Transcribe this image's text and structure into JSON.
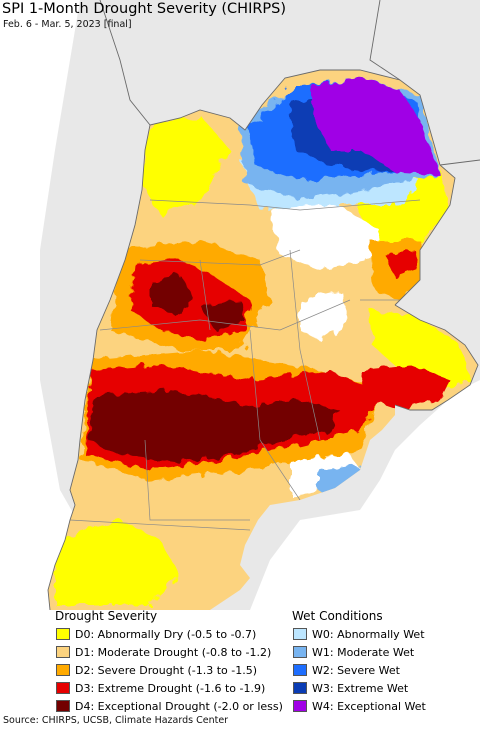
{
  "title": "SPI 1-Month Drought Severity (CHIRPS)",
  "subtitle": "Feb. 6 - Mar. 5, 2023 [final]",
  "map_colors": {
    "ocean": "#ffffff",
    "land_outside": "#e8e8e8",
    "border": "#8a8a8a"
  },
  "legend": {
    "drought_heading": "Drought Severity",
    "wet_heading": "Wet Conditions",
    "drought_items": [
      {
        "label": "D0: Abnormally Dry (-0.5 to -0.7)",
        "color": "#ffff00"
      },
      {
        "label": "D1: Moderate Drought (-0.8 to -1.2)",
        "color": "#fcd37f"
      },
      {
        "label": "D2: Severe Drought (-1.3 to -1.5)",
        "color": "#ffaa00"
      },
      {
        "label": "D3: Extreme Drought (-1.6 to -1.9)",
        "color": "#e60000"
      },
      {
        "label": "D4: Exceptional Drought (-2.0 or less)",
        "color": "#730000"
      }
    ],
    "wet_items": [
      {
        "label": "W0: Abnormally Wet",
        "color": "#bde6ff"
      },
      {
        "label": "W1: Moderate Wet",
        "color": "#78b4f0"
      },
      {
        "label": "W2: Severe Wet",
        "color": "#1e6eff"
      },
      {
        "label": "W3: Extreme Wet",
        "color": "#0a3cb4"
      },
      {
        "label": "W4: Exceptional Wet",
        "color": "#a000e6"
      }
    ]
  },
  "source": "Source: CHIRPS, UCSB, Climate Hazards Center"
}
